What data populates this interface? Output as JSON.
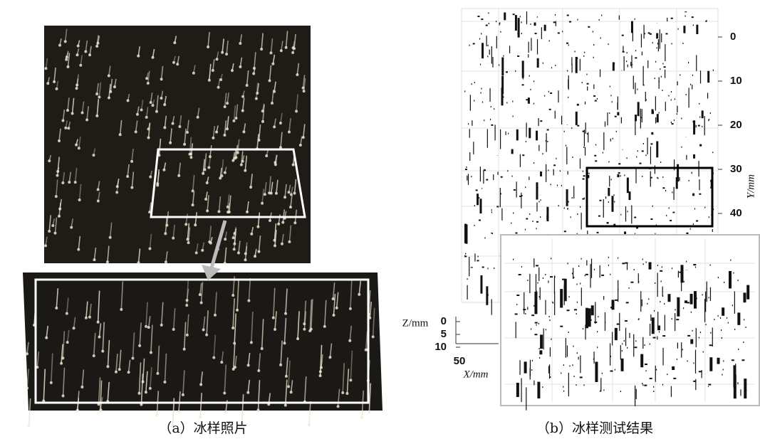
{
  "panel_a": {
    "caption": "（a）冰样照片"
  },
  "panel_b": {
    "caption": "（b）冰样测试结果",
    "y_axis": {
      "label": "Y/mm",
      "ticks": [
        0,
        10,
        20,
        30,
        40
      ]
    },
    "z_axis": {
      "label": "Z/mm",
      "ticks": [
        0,
        5,
        10
      ]
    },
    "x_axis": {
      "label": "X/mm",
      "ticks": [
        50
      ]
    }
  }
}
